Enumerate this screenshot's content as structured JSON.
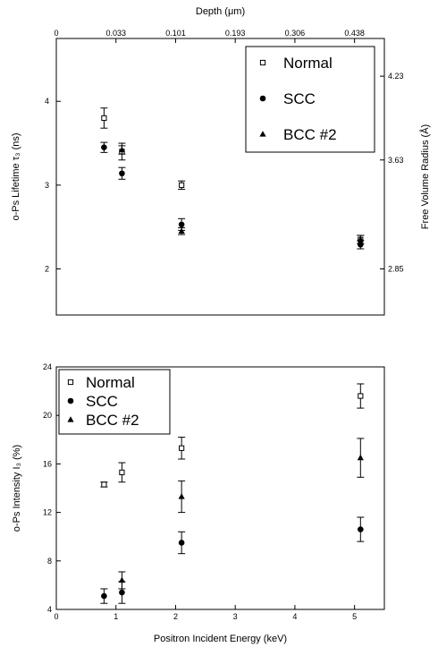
{
  "chart_data": [
    {
      "type": "scatter",
      "top_axis": {
        "label": "Depth (μm)",
        "ticks": [
          {
            "energy": 0,
            "label": "0"
          },
          {
            "energy": 1,
            "label": "0.033"
          },
          {
            "energy": 2,
            "label": "0.101"
          },
          {
            "energy": 3,
            "label": "0.193"
          },
          {
            "energy": 4,
            "label": "0.306"
          },
          {
            "energy": 5,
            "label": "0.438"
          }
        ]
      },
      "xlim": [
        0,
        5.5
      ],
      "ylabel": "o-Ps Lifetime τ₃ (ns)",
      "ylim": [
        1.45,
        4.75
      ],
      "yticks": [
        2,
        3,
        4
      ],
      "right_axis": {
        "label": "Free Volume Radius (Å)",
        "ticks": [
          {
            "y": 2.0,
            "label": "2.85"
          },
          {
            "y": 3.3,
            "label": "3.63"
          },
          {
            "y": 4.3,
            "label": "4.23"
          }
        ]
      },
      "legend_position": "top-right",
      "series": [
        {
          "name": "Normal",
          "marker": "open-square",
          "x": [
            0.8,
            1.1,
            2.1,
            5.1
          ],
          "y": [
            3.8,
            3.4,
            3.0,
            2.35
          ],
          "err": [
            0.12,
            0.1,
            0.05,
            0.05
          ]
        },
        {
          "name": "SCC",
          "marker": "filled-circle",
          "x": [
            0.8,
            1.1,
            2.1,
            5.1
          ],
          "y": [
            3.45,
            3.14,
            2.53,
            2.29
          ],
          "err": [
            0.06,
            0.07,
            0.07,
            0.05
          ]
        },
        {
          "name": "BCC #2",
          "marker": "filled-triangle",
          "x": [
            1.1,
            2.1,
            5.1
          ],
          "y": [
            3.42,
            2.45,
            2.35
          ],
          "err": [
            0.05,
            0.04,
            0.05
          ]
        }
      ]
    },
    {
      "type": "scatter",
      "xlabel": "Positron Incident Energy (keV)",
      "xlim": [
        0,
        5.5
      ],
      "xticks": [
        0,
        1,
        2,
        3,
        4,
        5
      ],
      "ylabel": "o-Ps Intensity I₃ (%)",
      "ylim": [
        4,
        24
      ],
      "yticks": [
        4,
        8,
        12,
        16,
        20,
        24
      ],
      "legend_position": "top-left",
      "series": [
        {
          "name": "Normal",
          "marker": "open-square",
          "x": [
            0.8,
            1.1,
            2.1,
            5.1
          ],
          "y": [
            14.3,
            15.3,
            17.3,
            21.6
          ],
          "err": [
            0.2,
            0.8,
            0.9,
            1.0
          ]
        },
        {
          "name": "SCC",
          "marker": "filled-circle",
          "x": [
            0.8,
            1.1,
            2.1,
            5.1
          ],
          "y": [
            5.1,
            5.4,
            9.5,
            10.6
          ],
          "err": [
            0.6,
            0.9,
            0.9,
            1.0
          ]
        },
        {
          "name": "BCC #2",
          "marker": "filled-triangle",
          "x": [
            1.1,
            2.1,
            5.1
          ],
          "y": [
            6.4,
            13.3,
            16.5
          ],
          "err": [
            0.7,
            1.3,
            1.6
          ]
        }
      ]
    }
  ]
}
